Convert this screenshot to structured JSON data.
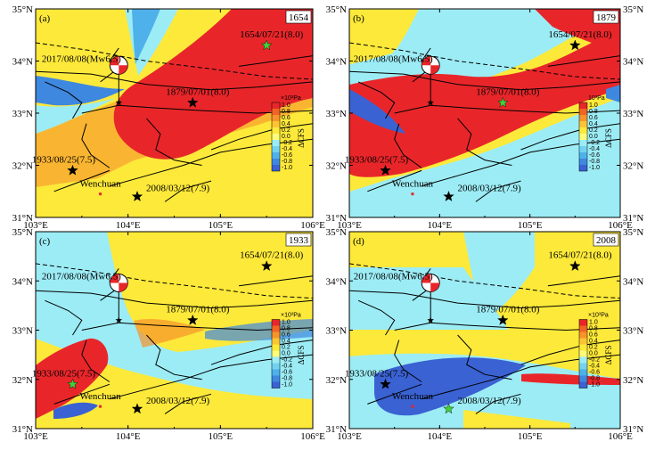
{
  "x_ticks": [
    "103°E",
    "104°E",
    "105°E",
    "106°E"
  ],
  "y_ticks": [
    "31°N",
    "32°N",
    "33°N",
    "34°N",
    "35°N"
  ],
  "colorbar": {
    "unit": "×10³Pa",
    "label": "ΔCFS",
    "ticks": [
      "1.0",
      "0.8",
      "0.6",
      "0.4",
      "0.2",
      "0.0",
      "-0.2",
      "-0.4",
      "-0.6",
      "-0.8",
      "-1.0"
    ],
    "colors": [
      "#e8262a",
      "#f26324",
      "#f7932b",
      "#fbc434",
      "#fde93a",
      "#fdfb7a",
      "#9cecf5",
      "#72d3f0",
      "#4fb1ea",
      "#3f88e0",
      "#3a62d3"
    ]
  },
  "panels": [
    {
      "letter": "(a)",
      "year": "1654",
      "unit": "×10³Pa"
    },
    {
      "letter": "(b)",
      "year": "1879",
      "unit": "10³Pa"
    },
    {
      "letter": "(c)",
      "year": "1933",
      "unit": "×10³Pa"
    },
    {
      "letter": "(d)",
      "year": "2008",
      "unit": "×10³Pa"
    }
  ],
  "events": [
    {
      "id": "e1654",
      "label": "1654/07/21(8.0)",
      "lon": 105.5,
      "lat": 34.3
    },
    {
      "id": "e1879",
      "label": "1879/07/01(8.0)",
      "lon": 104.7,
      "lat": 33.2
    },
    {
      "id": "e1933",
      "label": "1933/08/25(7.5)",
      "lon": 103.4,
      "lat": 31.9
    },
    {
      "id": "e2008",
      "label": "2008/03/12(7.9)",
      "lon": 104.1,
      "lat": 31.4
    }
  ],
  "highlighted": [
    "e1654",
    "e1879",
    "e1933",
    "e2008"
  ],
  "mainshock": {
    "label": "2017/08/08(Mw6.5)",
    "lon": 103.9,
    "lat": 33.2
  },
  "town": {
    "label": "Wenchuan",
    "lon": 103.7,
    "lat": 31.45
  }
}
